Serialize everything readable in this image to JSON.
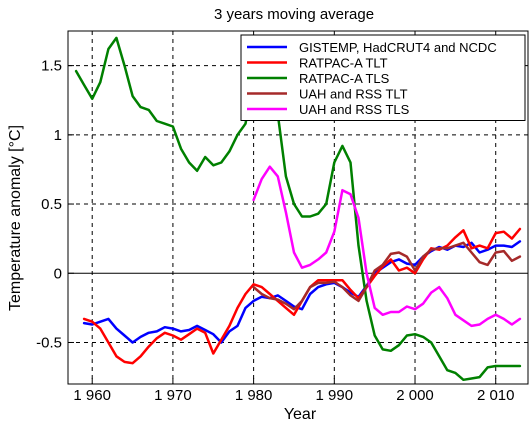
{
  "chart_data": {
    "type": "line",
    "title": "3 years moving average",
    "xlabel": "Year",
    "ylabel": "Temperature anomaly [°C]",
    "xlim": [
      1957,
      2014
    ],
    "ylim": [
      -0.8,
      1.75
    ],
    "x_ticks": [
      1960,
      1970,
      1980,
      1990,
      2000,
      2010
    ],
    "x_tick_labels": [
      "1 960",
      "1 970",
      "1 980",
      "1 990",
      "2 000",
      "2 010"
    ],
    "y_ticks": [
      -0.5,
      0,
      0.5,
      1,
      1.5
    ],
    "y_tick_labels": [
      "-0.5",
      "0",
      "0.5",
      "1",
      "1.5"
    ],
    "grid": "dashed",
    "legend_position": "top-right",
    "series": [
      {
        "name": "GISTEMP, HadCRUT4 and NCDC",
        "color": "#0000ff",
        "points": [
          [
            1959,
            -0.36
          ],
          [
            1960,
            -0.37
          ],
          [
            1961,
            -0.35
          ],
          [
            1962,
            -0.33
          ],
          [
            1963,
            -0.4
          ],
          [
            1964,
            -0.45
          ],
          [
            1965,
            -0.5
          ],
          [
            1966,
            -0.46
          ],
          [
            1967,
            -0.43
          ],
          [
            1968,
            -0.42
          ],
          [
            1969,
            -0.39
          ],
          [
            1970,
            -0.4
          ],
          [
            1971,
            -0.42
          ],
          [
            1972,
            -0.41
          ],
          [
            1973,
            -0.38
          ],
          [
            1974,
            -0.41
          ],
          [
            1975,
            -0.44
          ],
          [
            1976,
            -0.5
          ],
          [
            1977,
            -0.42
          ],
          [
            1978,
            -0.38
          ],
          [
            1979,
            -0.25
          ],
          [
            1980,
            -0.2
          ],
          [
            1981,
            -0.17
          ],
          [
            1982,
            -0.18
          ],
          [
            1983,
            -0.16
          ],
          [
            1984,
            -0.2
          ],
          [
            1985,
            -0.24
          ],
          [
            1986,
            -0.26
          ],
          [
            1987,
            -0.15
          ],
          [
            1988,
            -0.1
          ],
          [
            1989,
            -0.08
          ],
          [
            1990,
            -0.07
          ],
          [
            1991,
            -0.1
          ],
          [
            1992,
            -0.14
          ],
          [
            1993,
            -0.17
          ],
          [
            1994,
            -0.09
          ],
          [
            1995,
            0.0
          ],
          [
            1996,
            0.04
          ],
          [
            1997,
            0.08
          ],
          [
            1998,
            0.1
          ],
          [
            1999,
            0.07
          ],
          [
            2000,
            0.06
          ],
          [
            2001,
            0.12
          ],
          [
            2002,
            0.16
          ],
          [
            2003,
            0.19
          ],
          [
            2004,
            0.17
          ],
          [
            2005,
            0.2
          ],
          [
            2006,
            0.19
          ],
          [
            2007,
            0.22
          ],
          [
            2008,
            0.15
          ],
          [
            2009,
            0.17
          ],
          [
            2010,
            0.2
          ],
          [
            2011,
            0.2
          ],
          [
            2012,
            0.19
          ],
          [
            2013,
            0.23
          ]
        ]
      },
      {
        "name": "RATPAC-A TLT",
        "color": "#ff0000",
        "points": [
          [
            1959,
            -0.33
          ],
          [
            1960,
            -0.35
          ],
          [
            1961,
            -0.4
          ],
          [
            1962,
            -0.5
          ],
          [
            1963,
            -0.6
          ],
          [
            1964,
            -0.64
          ],
          [
            1965,
            -0.65
          ],
          [
            1966,
            -0.6
          ],
          [
            1967,
            -0.53
          ],
          [
            1968,
            -0.47
          ],
          [
            1969,
            -0.43
          ],
          [
            1970,
            -0.45
          ],
          [
            1971,
            -0.48
          ],
          [
            1972,
            -0.44
          ],
          [
            1973,
            -0.4
          ],
          [
            1974,
            -0.43
          ],
          [
            1975,
            -0.58
          ],
          [
            1976,
            -0.48
          ],
          [
            1977,
            -0.38
          ],
          [
            1978,
            -0.25
          ],
          [
            1979,
            -0.15
          ],
          [
            1980,
            -0.08
          ],
          [
            1981,
            -0.1
          ],
          [
            1982,
            -0.15
          ],
          [
            1983,
            -0.2
          ],
          [
            1984,
            -0.25
          ],
          [
            1985,
            -0.3
          ],
          [
            1986,
            -0.2
          ],
          [
            1987,
            -0.1
          ],
          [
            1988,
            -0.05
          ],
          [
            1989,
            -0.05
          ],
          [
            1990,
            -0.05
          ],
          [
            1991,
            -0.05
          ],
          [
            1992,
            -0.12
          ],
          [
            1993,
            -0.18
          ],
          [
            1994,
            -0.1
          ],
          [
            1995,
            -0.02
          ],
          [
            1996,
            0.05
          ],
          [
            1997,
            0.1
          ],
          [
            1998,
            0.02
          ],
          [
            1999,
            0.04
          ],
          [
            2000,
            0.0
          ],
          [
            2001,
            0.1
          ],
          [
            2002,
            0.18
          ],
          [
            2003,
            0.17
          ],
          [
            2004,
            0.2
          ],
          [
            2005,
            0.26
          ],
          [
            2006,
            0.31
          ],
          [
            2007,
            0.18
          ],
          [
            2008,
            0.2
          ],
          [
            2009,
            0.18
          ],
          [
            2010,
            0.29
          ],
          [
            2011,
            0.3
          ],
          [
            2012,
            0.25
          ],
          [
            2013,
            0.32
          ]
        ]
      },
      {
        "name": "RATPAC-A TLS",
        "color": "#008000",
        "points": [
          [
            1958,
            1.46
          ],
          [
            1959,
            1.36
          ],
          [
            1960,
            1.26
          ],
          [
            1961,
            1.38
          ],
          [
            1962,
            1.62
          ],
          [
            1963,
            1.7
          ],
          [
            1964,
            1.5
          ],
          [
            1965,
            1.28
          ],
          [
            1966,
            1.2
          ],
          [
            1967,
            1.18
          ],
          [
            1968,
            1.1
          ],
          [
            1969,
            1.08
          ],
          [
            1970,
            1.06
          ],
          [
            1971,
            0.9
          ],
          [
            1972,
            0.8
          ],
          [
            1973,
            0.74
          ],
          [
            1974,
            0.84
          ],
          [
            1975,
            0.78
          ],
          [
            1976,
            0.8
          ],
          [
            1977,
            0.88
          ],
          [
            1978,
            1.0
          ],
          [
            1979,
            1.08
          ],
          [
            1980,
            1.4
          ],
          [
            1981,
            1.6
          ],
          [
            1982,
            1.3
          ],
          [
            1983,
            1.15
          ],
          [
            1984,
            0.7
          ],
          [
            1985,
            0.5
          ],
          [
            1986,
            0.41
          ],
          [
            1987,
            0.41
          ],
          [
            1988,
            0.43
          ],
          [
            1989,
            0.5
          ],
          [
            1990,
            0.8
          ],
          [
            1991,
            0.92
          ],
          [
            1992,
            0.8
          ],
          [
            1993,
            0.2
          ],
          [
            1994,
            -0.2
          ],
          [
            1995,
            -0.45
          ],
          [
            1996,
            -0.55
          ],
          [
            1997,
            -0.56
          ],
          [
            1998,
            -0.52
          ],
          [
            1999,
            -0.45
          ],
          [
            2000,
            -0.44
          ],
          [
            2001,
            -0.46
          ],
          [
            2002,
            -0.5
          ],
          [
            2003,
            -0.6
          ],
          [
            2004,
            -0.7
          ],
          [
            2005,
            -0.72
          ],
          [
            2006,
            -0.77
          ],
          [
            2007,
            -0.76
          ],
          [
            2008,
            -0.75
          ],
          [
            2009,
            -0.68
          ],
          [
            2010,
            -0.67
          ],
          [
            2011,
            -0.67
          ],
          [
            2012,
            -0.67
          ],
          [
            2013,
            -0.67
          ]
        ]
      },
      {
        "name": "UAH and RSS TLT",
        "color": "#a52a2a",
        "points": [
          [
            1980,
            -0.1
          ],
          [
            1981,
            -0.15
          ],
          [
            1982,
            -0.18
          ],
          [
            1983,
            -0.19
          ],
          [
            1984,
            -0.22
          ],
          [
            1985,
            -0.26
          ],
          [
            1986,
            -0.2
          ],
          [
            1987,
            -0.1
          ],
          [
            1988,
            -0.07
          ],
          [
            1989,
            -0.07
          ],
          [
            1990,
            -0.06
          ],
          [
            1991,
            -0.1
          ],
          [
            1992,
            -0.16
          ],
          [
            1993,
            -0.2
          ],
          [
            1994,
            -0.1
          ],
          [
            1995,
            0.02
          ],
          [
            1996,
            0.06
          ],
          [
            1997,
            0.14
          ],
          [
            1998,
            0.15
          ],
          [
            1999,
            0.12
          ],
          [
            2000,
            0.02
          ],
          [
            2001,
            0.12
          ],
          [
            2002,
            0.17
          ],
          [
            2003,
            0.18
          ],
          [
            2004,
            0.18
          ],
          [
            2005,
            0.2
          ],
          [
            2006,
            0.22
          ],
          [
            2007,
            0.15
          ],
          [
            2008,
            0.08
          ],
          [
            2009,
            0.06
          ],
          [
            2010,
            0.15
          ],
          [
            2011,
            0.16
          ],
          [
            2012,
            0.09
          ],
          [
            2013,
            0.12
          ]
        ]
      },
      {
        "name": "UAH and RSS TLS",
        "color": "#ff00ff",
        "points": [
          [
            1980,
            0.53
          ],
          [
            1981,
            0.68
          ],
          [
            1982,
            0.77
          ],
          [
            1983,
            0.7
          ],
          [
            1984,
            0.44
          ],
          [
            1985,
            0.15
          ],
          [
            1986,
            0.04
          ],
          [
            1987,
            0.06
          ],
          [
            1988,
            0.1
          ],
          [
            1989,
            0.15
          ],
          [
            1990,
            0.3
          ],
          [
            1991,
            0.6
          ],
          [
            1992,
            0.57
          ],
          [
            1993,
            0.4
          ],
          [
            1994,
            0.0
          ],
          [
            1995,
            -0.25
          ],
          [
            1996,
            -0.3
          ],
          [
            1997,
            -0.28
          ],
          [
            1998,
            -0.28
          ],
          [
            1999,
            -0.24
          ],
          [
            2000,
            -0.26
          ],
          [
            2001,
            -0.22
          ],
          [
            2002,
            -0.14
          ],
          [
            2003,
            -0.1
          ],
          [
            2004,
            -0.18
          ],
          [
            2005,
            -0.3
          ],
          [
            2006,
            -0.34
          ],
          [
            2007,
            -0.38
          ],
          [
            2008,
            -0.37
          ],
          [
            2009,
            -0.33
          ],
          [
            2010,
            -0.3
          ],
          [
            2011,
            -0.33
          ],
          [
            2012,
            -0.37
          ],
          [
            2013,
            -0.33
          ]
        ]
      }
    ]
  }
}
